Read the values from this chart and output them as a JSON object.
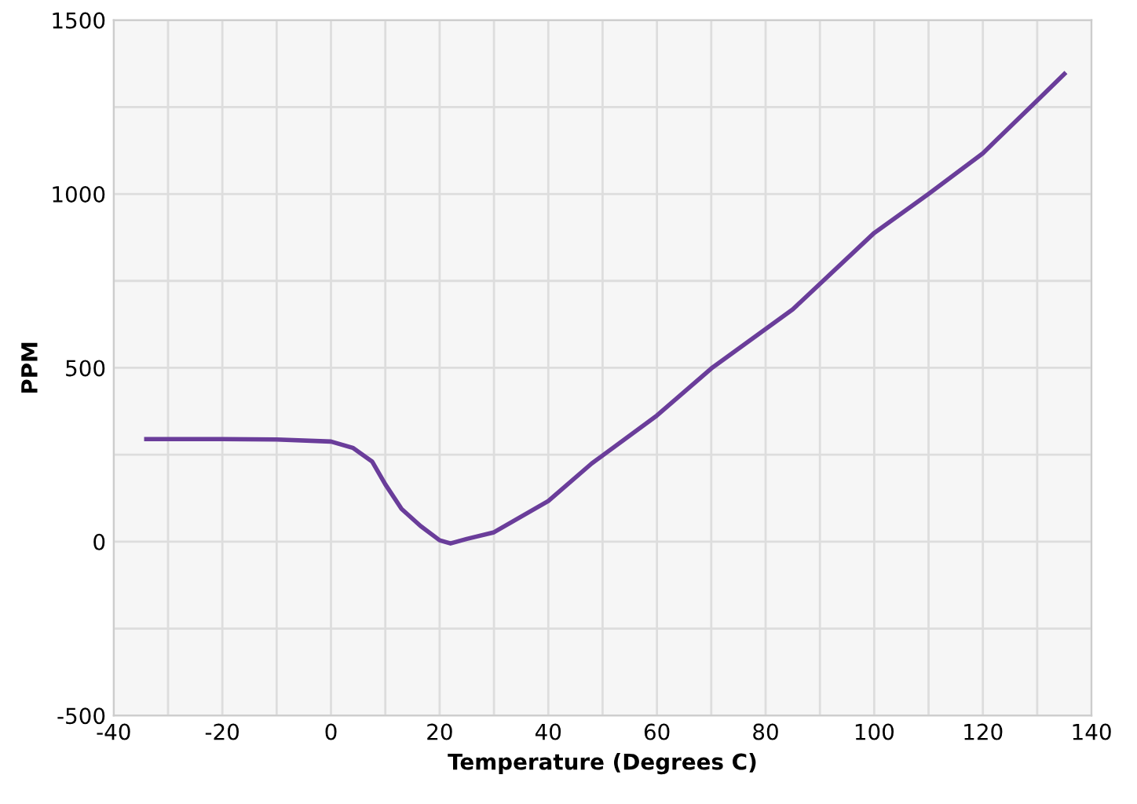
{
  "chart_data": {
    "type": "line",
    "xlabel": "Temperature (Degrees C)",
    "ylabel": "PPM",
    "x": [
      -34,
      -20,
      -10,
      0,
      4,
      7.6,
      10,
      13,
      16.5,
      20,
      22,
      25,
      30,
      40,
      48,
      60,
      70,
      85,
      100,
      110,
      120,
      130,
      135
    ],
    "series": [
      {
        "color": "#6a3d9a",
        "values": [
          295,
          295,
          294,
          288,
          270,
          230,
          165,
          94,
          45,
          4,
          -5,
          8,
          27,
          117,
          225,
          363,
          498,
          668,
          888,
          1000,
          1117,
          1269,
          1345
        ]
      }
    ],
    "xlim": [
      -40,
      140
    ],
    "ylim": [
      -500,
      1500
    ],
    "xticks": [
      -40,
      {
        "value": -30,
        "label": null
      },
      -20,
      {
        "value": -10,
        "label": null
      },
      0,
      {
        "value": 10,
        "label": null
      },
      20,
      {
        "value": 30,
        "label": null
      },
      40,
      {
        "value": 50,
        "label": null
      },
      60,
      {
        "value": 70,
        "label": null
      },
      80,
      {
        "value": 90,
        "label": null
      },
      100,
      {
        "value": 110,
        "label": null
      },
      120,
      {
        "value": 130,
        "label": null
      },
      140
    ],
    "yticks": [
      -500,
      {
        "value": -250,
        "label": null
      },
      0,
      {
        "value": 250,
        "label": null
      },
      500,
      {
        "value": 750,
        "label": null
      },
      1000,
      {
        "value": 1250,
        "label": null
      },
      1500
    ],
    "grid": true,
    "marker": "none",
    "line_style": "solid"
  }
}
